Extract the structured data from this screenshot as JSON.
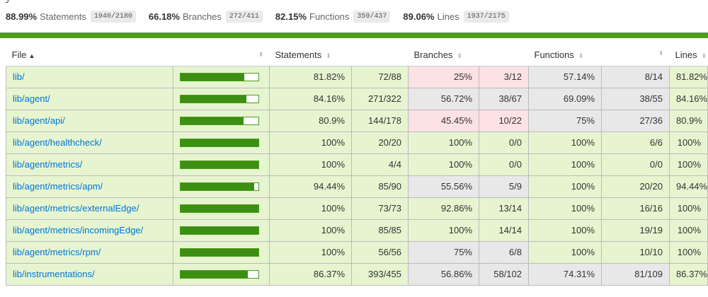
{
  "summary": [
    {
      "pct": "88.99%",
      "label": "Statements",
      "frac": "1940/2180"
    },
    {
      "pct": "66.18%",
      "label": "Branches",
      "frac": "272/411"
    },
    {
      "pct": "82.15%",
      "label": "Functions",
      "frac": "359/437"
    },
    {
      "pct": "89.06%",
      "label": "Lines",
      "frac": "1937/2175"
    }
  ],
  "colors": {
    "high": "#e6f5d0",
    "medium": "#e8e8e8",
    "low": "#fce1e5",
    "status_bar": "#4d9c1d",
    "link": "#0074d9"
  },
  "headers": {
    "file": "File",
    "statements": "Statements",
    "branches": "Branches",
    "functions": "Functions",
    "lines": "Lines"
  },
  "sort": {
    "column": "file",
    "direction": "ascending"
  },
  "rows": [
    {
      "file": "lib/",
      "bar": 0.8182,
      "s_pct": "81.82%",
      "s_frac": "72/88",
      "b_pct": "25%",
      "b_frac": "3/12",
      "f_pct": "57.14%",
      "f_frac": "8/14",
      "l_pct": "81.82%",
      "s_cls": "hi",
      "b_cls": "lo",
      "f_cls": "med",
      "l_cls": "hi"
    },
    {
      "file": "lib/agent/",
      "bar": 0.8416,
      "s_pct": "84.16%",
      "s_frac": "271/322",
      "b_pct": "56.72%",
      "b_frac": "38/67",
      "f_pct": "69.09%",
      "f_frac": "38/55",
      "l_pct": "84.16%",
      "s_cls": "hi",
      "b_cls": "med",
      "f_cls": "med",
      "l_cls": "hi"
    },
    {
      "file": "lib/agent/api/",
      "bar": 0.809,
      "s_pct": "80.9%",
      "s_frac": "144/178",
      "b_pct": "45.45%",
      "b_frac": "10/22",
      "f_pct": "75%",
      "f_frac": "27/36",
      "l_pct": "80.9%",
      "s_cls": "hi",
      "b_cls": "lo",
      "f_cls": "med",
      "l_cls": "hi"
    },
    {
      "file": "lib/agent/healthcheck/",
      "bar": 1.0,
      "s_pct": "100%",
      "s_frac": "20/20",
      "b_pct": "100%",
      "b_frac": "0/0",
      "f_pct": "100%",
      "f_frac": "6/6",
      "l_pct": "100%",
      "s_cls": "hi",
      "b_cls": "hi",
      "f_cls": "hi",
      "l_cls": "hi"
    },
    {
      "file": "lib/agent/metrics/",
      "bar": 1.0,
      "s_pct": "100%",
      "s_frac": "4/4",
      "b_pct": "100%",
      "b_frac": "0/0",
      "f_pct": "100%",
      "f_frac": "0/0",
      "l_pct": "100%",
      "s_cls": "hi",
      "b_cls": "hi",
      "f_cls": "hi",
      "l_cls": "hi"
    },
    {
      "file": "lib/agent/metrics/apm/",
      "bar": 0.9444,
      "s_pct": "94.44%",
      "s_frac": "85/90",
      "b_pct": "55.56%",
      "b_frac": "5/9",
      "f_pct": "100%",
      "f_frac": "20/20",
      "l_pct": "94.44%",
      "s_cls": "hi",
      "b_cls": "med",
      "f_cls": "hi",
      "l_cls": "hi"
    },
    {
      "file": "lib/agent/metrics/externalEdge/",
      "bar": 1.0,
      "s_pct": "100%",
      "s_frac": "73/73",
      "b_pct": "92.86%",
      "b_frac": "13/14",
      "f_pct": "100%",
      "f_frac": "16/16",
      "l_pct": "100%",
      "s_cls": "hi",
      "b_cls": "hi",
      "f_cls": "hi",
      "l_cls": "hi"
    },
    {
      "file": "lib/agent/metrics/incomingEdge/",
      "bar": 1.0,
      "s_pct": "100%",
      "s_frac": "85/85",
      "b_pct": "100%",
      "b_frac": "14/14",
      "f_pct": "100%",
      "f_frac": "19/19",
      "l_pct": "100%",
      "s_cls": "hi",
      "b_cls": "hi",
      "f_cls": "hi",
      "l_cls": "hi"
    },
    {
      "file": "lib/agent/metrics/rpm/",
      "bar": 1.0,
      "s_pct": "100%",
      "s_frac": "56/56",
      "b_pct": "75%",
      "b_frac": "6/8",
      "f_pct": "100%",
      "f_frac": "10/10",
      "l_pct": "100%",
      "s_cls": "hi",
      "b_cls": "med",
      "f_cls": "hi",
      "l_cls": "hi"
    },
    {
      "file": "lib/instrumentations/",
      "bar": 0.8637,
      "s_pct": "86.37%",
      "s_frac": "393/455",
      "b_pct": "56.86%",
      "b_frac": "58/102",
      "f_pct": "74.31%",
      "f_frac": "81/109",
      "l_pct": "86.37%",
      "s_cls": "hi",
      "b_cls": "med",
      "f_cls": "med",
      "l_cls": "hi"
    }
  ]
}
